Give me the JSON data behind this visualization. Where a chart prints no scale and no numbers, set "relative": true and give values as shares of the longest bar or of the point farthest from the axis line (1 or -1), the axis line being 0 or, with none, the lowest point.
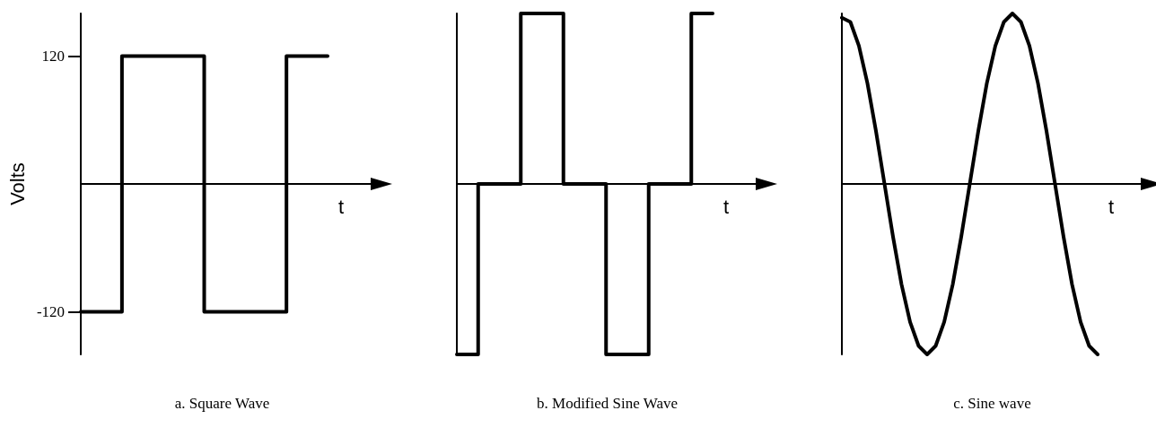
{
  "chart_data": [
    {
      "type": "step",
      "title": "a. Square Wave",
      "ylabel": "Volts",
      "xlabel": "t",
      "ylim": [
        -160,
        160
      ],
      "yticks": [
        120,
        -120
      ],
      "tick_labels": "y",
      "grid": false,
      "marker": "none",
      "categories": [
        null,
        null,
        null,
        null,
        null,
        null,
        null
      ],
      "series": [
        {
          "color": "#000000",
          "values": [
            -120,
            120,
            120,
            -120,
            -120,
            120,
            120
          ]
        }
      ]
    },
    {
      "type": "step",
      "title": "b. Modified Sine Wave",
      "xlabel": "t",
      "relative": true,
      "grid": false,
      "marker": "none",
      "categories": [
        null,
        null,
        null,
        null,
        null,
        null,
        null,
        null,
        null,
        null,
        null,
        null,
        null
      ],
      "series": [
        {
          "color": "#000000",
          "values": [
            -1,
            0,
            0,
            1,
            1,
            0,
            0,
            -1,
            -1,
            0,
            0,
            1,
            1
          ]
        }
      ]
    },
    {
      "type": "line",
      "title": "c. Sine wave",
      "xlabel": "t",
      "relative": true,
      "grid": false,
      "marker": "none",
      "categories": [
        null,
        null,
        null,
        null,
        null,
        null,
        null,
        null,
        null,
        null,
        null,
        null,
        null,
        null,
        null,
        null,
        null,
        null,
        null,
        null,
        null,
        null,
        null,
        null,
        null,
        null,
        null,
        null,
        null,
        null,
        null
      ],
      "series": [
        {
          "color": "#000000",
          "values": [
            0.975,
            0.95,
            0.81,
            0.59,
            0.31,
            0,
            -0.31,
            -0.59,
            -0.81,
            -0.95,
            -1,
            -0.95,
            -0.81,
            -0.59,
            -0.31,
            0,
            0.31,
            0.59,
            0.81,
            0.95,
            1,
            0.95,
            0.81,
            0.59,
            0.31,
            0,
            -0.31,
            -0.59,
            -0.81,
            -0.95,
            -1
          ]
        }
      ]
    }
  ]
}
